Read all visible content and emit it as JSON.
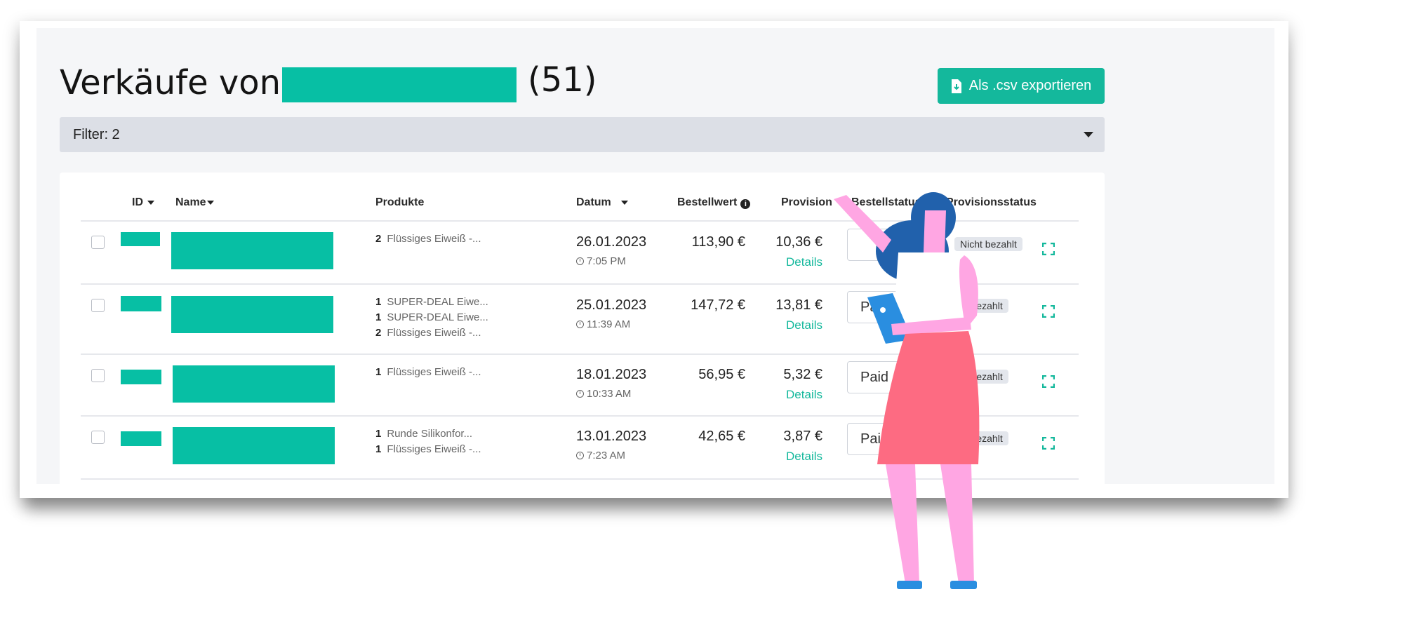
{
  "page": {
    "title_prefix": "Verkäufe von",
    "title_count": "(51)",
    "export_label": "Als .csv exportieren",
    "filter_label": "Filter: 2"
  },
  "colors": {
    "accent": "#14b89c",
    "redaction": "#07bfa4",
    "figure_skin": "#ffa6e3",
    "figure_skirt": "#fd6b82",
    "figure_hair": "#2161ac",
    "figure_tablet": "#2a8ee0"
  },
  "table": {
    "headers": {
      "id": "ID",
      "name": "Name",
      "products": "Produkte",
      "date": "Datum",
      "order_value": "Bestellwert",
      "commission": "Provision",
      "order_status": "Bestellstatus",
      "commission_status": "Provisionsstatus"
    },
    "rows": [
      {
        "products": [
          {
            "qty": "2",
            "name": "Flüssiges Eiweiß -..."
          }
        ],
        "date": "26.01.2023",
        "time": "7:05 PM",
        "order_value": "113,90 €",
        "commission": "10,36 €",
        "details": "Details",
        "order_status": "",
        "commission_status": "Nicht bezahlt"
      },
      {
        "products": [
          {
            "qty": "1",
            "name": "SUPER-DEAL Eiwe..."
          },
          {
            "qty": "1",
            "name": "SUPER-DEAL Eiwe..."
          },
          {
            "qty": "2",
            "name": "Flüssiges Eiweiß -..."
          }
        ],
        "date": "25.01.2023",
        "time": "11:39 AM",
        "order_value": "147,72 €",
        "commission": "13,81 €",
        "details": "Details",
        "order_status": "Pai",
        "commission_status": "ht bezahlt"
      },
      {
        "products": [
          {
            "qty": "1",
            "name": "Flüssiges Eiweiß -..."
          }
        ],
        "date": "18.01.2023",
        "time": "10:33 AM",
        "order_value": "56,95 €",
        "commission": "5,32 €",
        "details": "Details",
        "order_status": "Paid",
        "commission_status": "ht bezahlt"
      },
      {
        "products": [
          {
            "qty": "1",
            "name": "Runde Silikonfor..."
          },
          {
            "qty": "1",
            "name": "Flüssiges Eiweiß -..."
          }
        ],
        "date": "13.01.2023",
        "time": "7:23 AM",
        "order_value": "42,65 €",
        "commission": "3,87 €",
        "details": "Details",
        "order_status": "Paid",
        "commission_status": "ht bezahlt"
      }
    ]
  },
  "icons": {
    "export": "file-download-icon",
    "filter": "chevron-down-icon",
    "info": "info-icon",
    "clock": "clock-icon",
    "expand": "expand-icon"
  }
}
